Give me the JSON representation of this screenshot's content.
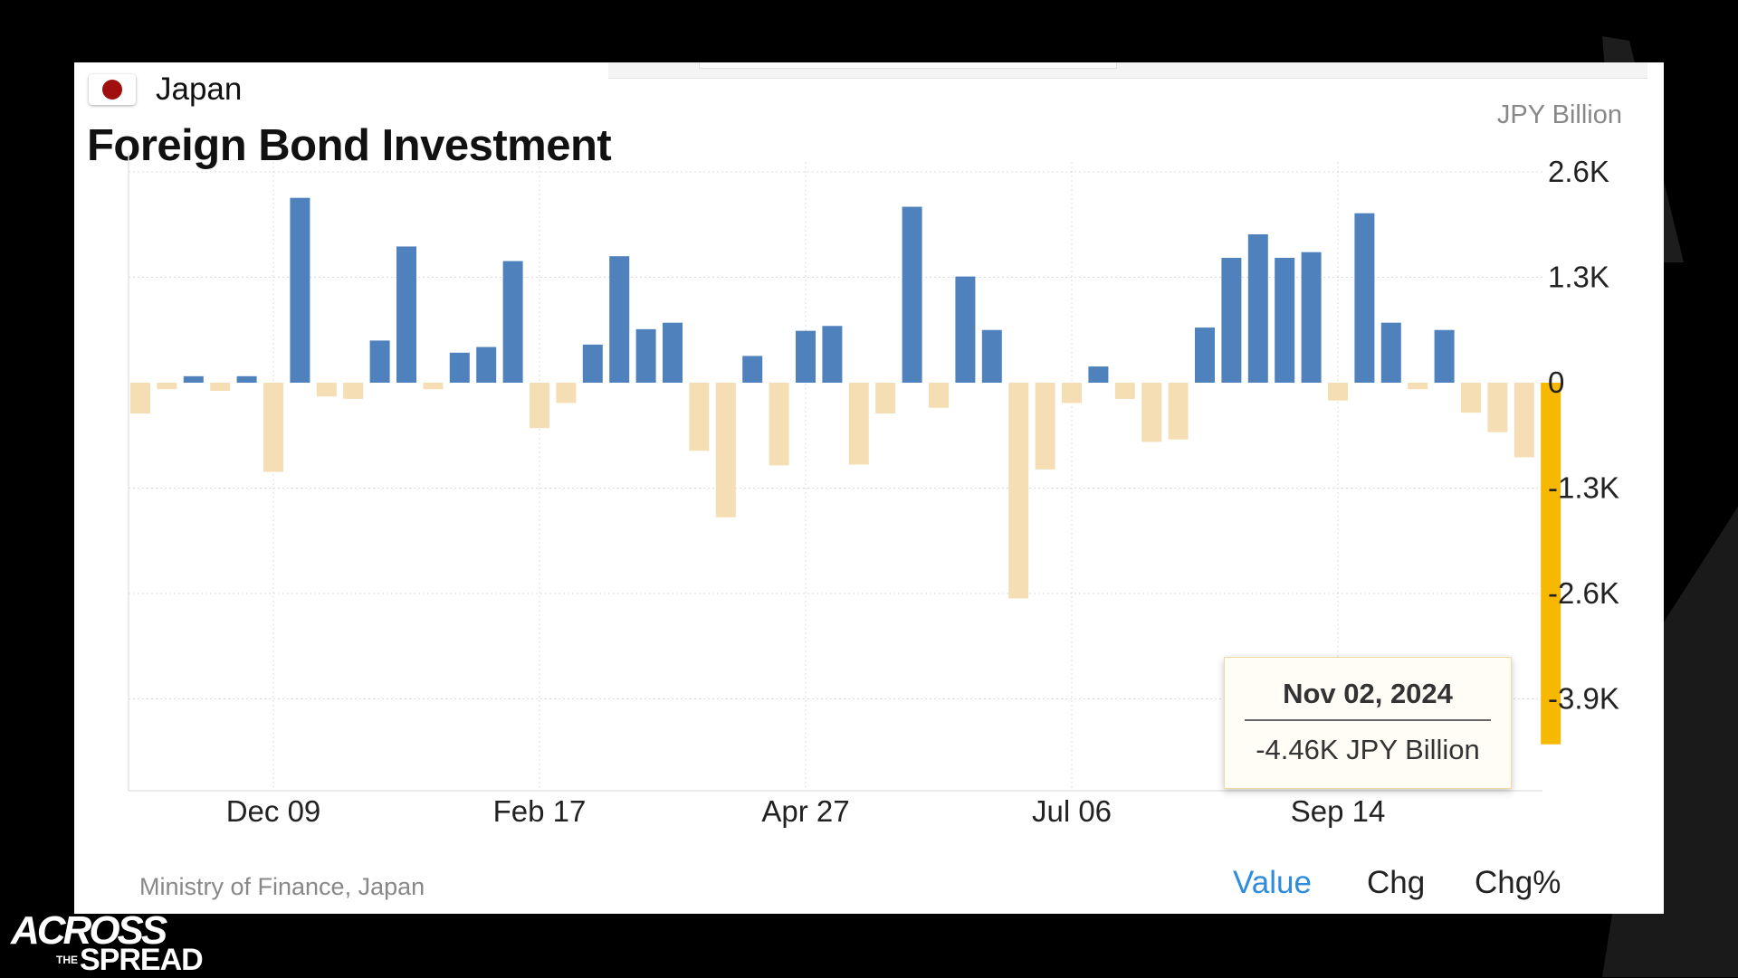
{
  "header": {
    "country": "Japan",
    "title": "Foreign Bond Investment",
    "unit": "JPY Billion"
  },
  "footer": {
    "source": "Ministry of Finance, Japan",
    "toggles": [
      "Value",
      "Chg",
      "Chg%"
    ],
    "active_toggle": "Value"
  },
  "tooltip": {
    "date": "Nov 02, 2024",
    "value": "-4.46K JPY Billion"
  },
  "logo": {
    "line1": "ACROSS",
    "small": "THE",
    "line2": "SPREAD"
  },
  "colors": {
    "positive": "#4f81bd",
    "negative": "#f5deb3",
    "highlight": "#f6b800",
    "background": "#000000",
    "card": "#ffffff",
    "active_toggle": "#2f8bdc"
  },
  "chart_data": {
    "type": "bar",
    "unit": "JPY Billion",
    "y_ticks": [
      "2.6K",
      "1.3K",
      "0",
      "-1.3K",
      "-2.6K",
      "-3.9K"
    ],
    "y_tick_values": [
      2600,
      1300,
      0,
      -1300,
      -2600,
      -3900
    ],
    "ylim": [
      -5000,
      2800
    ],
    "x_tick_labels": [
      "Dec 09",
      "Feb 17",
      "Apr 27",
      "Jul 06",
      "Sep 14"
    ],
    "x_tick_bar_index": [
      5,
      15,
      25,
      35,
      45
    ],
    "grid": true,
    "values": [
      -380,
      -80,
      80,
      -100,
      80,
      -1100,
      2280,
      -170,
      -200,
      520,
      1680,
      -80,
      370,
      440,
      1500,
      -560,
      -250,
      470,
      1560,
      660,
      740,
      -840,
      -1660,
      330,
      -1020,
      640,
      700,
      -1010,
      -380,
      2170,
      -310,
      1310,
      650,
      -2660,
      -1070,
      -250,
      200,
      -200,
      -730,
      -700,
      680,
      1540,
      1830,
      1540,
      1610,
      -220,
      2090,
      740,
      -80,
      650,
      -370,
      -610,
      -920,
      -4460
    ],
    "highlight_index": 53
  }
}
